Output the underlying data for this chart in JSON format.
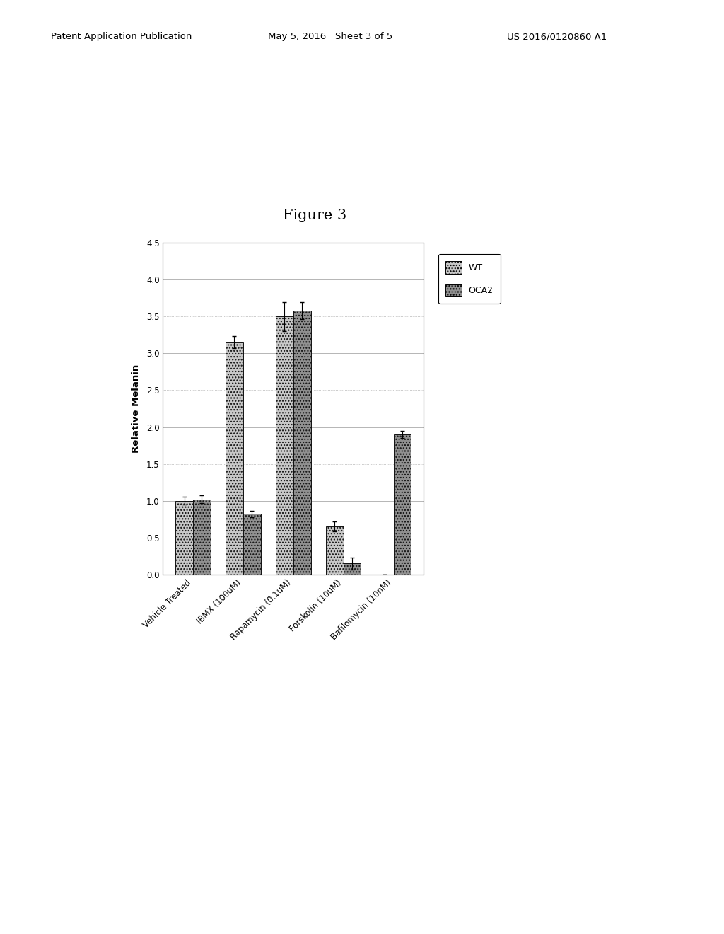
{
  "categories": [
    "Vehicle Treated",
    "IBMX (100uM)",
    "Rapamycin (0.1uM)",
    "Forskolin (10uM)",
    "Bafilomycin (10nM)"
  ],
  "wt_values": [
    1.0,
    3.15,
    3.5,
    0.65,
    0.0
  ],
  "oca2_values": [
    1.02,
    0.82,
    3.58,
    0.15,
    1.9
  ],
  "wt_errors": [
    0.05,
    0.08,
    0.2,
    0.07,
    0.0
  ],
  "oca2_errors": [
    0.05,
    0.04,
    0.12,
    0.08,
    0.05
  ],
  "ylabel": "Relative Melanin",
  "title": "Figure 3",
  "ylim": [
    0.0,
    4.5
  ],
  "yticks": [
    0.0,
    0.5,
    1.0,
    1.5,
    2.0,
    2.5,
    3.0,
    3.5,
    4.0,
    4.5
  ],
  "legend_labels": [
    "WT",
    "OCA2"
  ],
  "bar_width": 0.35,
  "background_color": "#ffffff",
  "grid_color": "#999999",
  "bar_edge_color": "#000000",
  "header_left": "Patent Application Publication",
  "header_mid": "May 5, 2016   Sheet 3 of 5",
  "header_right": "US 2016/0120860 A1"
}
